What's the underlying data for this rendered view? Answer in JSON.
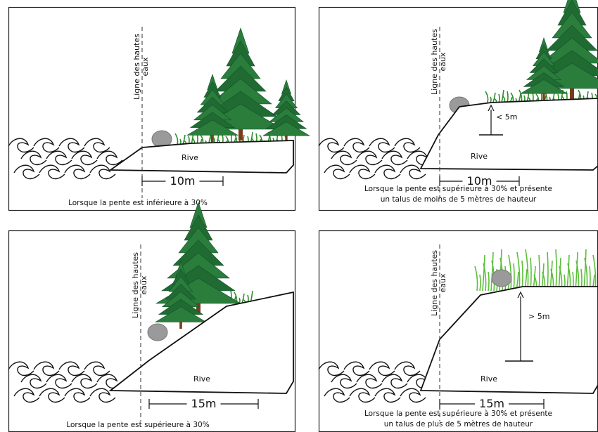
{
  "panels": [
    {
      "water_line_label": [
        "Ligne des hautes",
        "eaux"
      ],
      "bank_label": "Rive",
      "distance": "10m",
      "caption": [
        "Lorsque la pente est inférieure à 30%"
      ]
    },
    {
      "water_line_label": [
        "Ligne des hautes",
        "eaux"
      ],
      "bank_label": "Rive",
      "distance": "10m",
      "height": "< 5m",
      "caption": [
        "Lorsque la pente est supérieure à 30% et présente",
        "un talus de moins de 5 mètres de hauteur"
      ]
    },
    {
      "water_line_label": [
        "Ligne des hautes",
        "eaux"
      ],
      "bank_label": "Rive",
      "distance": "15m",
      "caption": [
        "Lorsque la pente est supérieure à 30%"
      ]
    },
    {
      "water_line_label": [
        "Ligne des hautes",
        "eaux"
      ],
      "bank_label": "Rive",
      "distance": "15m",
      "height": "> 5m",
      "caption": [
        "Lorsque la pente est supérieure à 30% et présente",
        "un talus de plus de 5 mètres de hauteur"
      ]
    }
  ]
}
